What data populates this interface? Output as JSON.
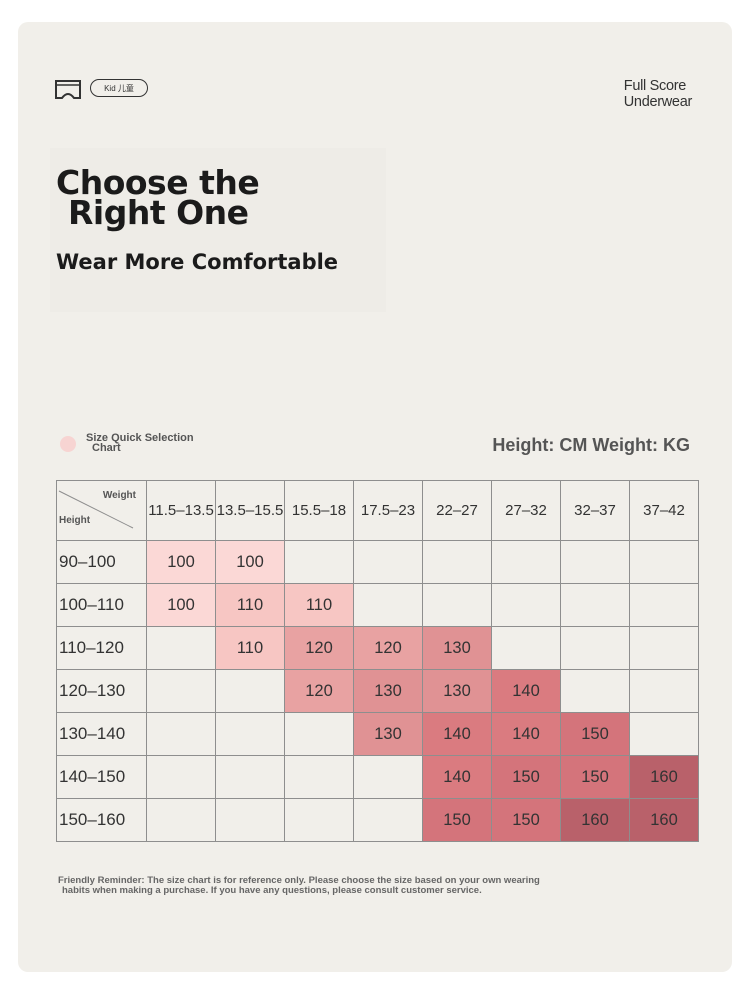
{
  "header": {
    "kid_label": "Kid 儿童",
    "brand_line1": "Full Score",
    "brand_line2": "Underwear"
  },
  "hero": {
    "title_line1": "Choose the",
    "title_line2": "Right One",
    "subtitle": "Wear More Comfortable"
  },
  "legend": {
    "line1": "Size Quick Selection",
    "line2": "Chart",
    "units": "Height: CM Weight: KG"
  },
  "table": {
    "corner_weight": "Weight",
    "corner_height": "Height",
    "weight_headers": [
      "11.5–13.5",
      "13.5–15.5",
      "15.5–18",
      "17.5–23",
      "22–27",
      "27–32",
      "32–37",
      "37–42"
    ],
    "rows": [
      {
        "height": "90–100",
        "sizes": [
          "100",
          "100",
          "",
          "",
          "",
          "",
          "",
          ""
        ]
      },
      {
        "height": "100–110",
        "sizes": [
          "100",
          "110",
          "110",
          "",
          "",
          "",
          "",
          ""
        ]
      },
      {
        "height": "110–120",
        "sizes": [
          "",
          "110",
          "120",
          "120",
          "130",
          "",
          "",
          ""
        ]
      },
      {
        "height": "120–130",
        "sizes": [
          "",
          "",
          "120",
          "130",
          "130",
          "140",
          "",
          ""
        ]
      },
      {
        "height": "130–140",
        "sizes": [
          "",
          "",
          "",
          "130",
          "140",
          "140",
          "150",
          ""
        ]
      },
      {
        "height": "140–150",
        "sizes": [
          "",
          "",
          "",
          "",
          "140",
          "150",
          "150",
          "160"
        ]
      },
      {
        "height": "150–160",
        "sizes": [
          "",
          "",
          "",
          "",
          "150",
          "150",
          "160",
          "160"
        ]
      }
    ]
  },
  "size_colors": {
    "100": "#fbd8d6",
    "110": "#f7c6c3",
    "120": "#e8a2a2",
    "130": "#e09294",
    "140": "#da7b80",
    "150": "#d4747b",
    "160": "#b9616a"
  },
  "footer": {
    "line1": "Friendly Reminder: The size chart is for reference only. Please choose the size based on your own wearing",
    "line2": "habits when making a purchase. If you have any questions, please consult customer service."
  }
}
